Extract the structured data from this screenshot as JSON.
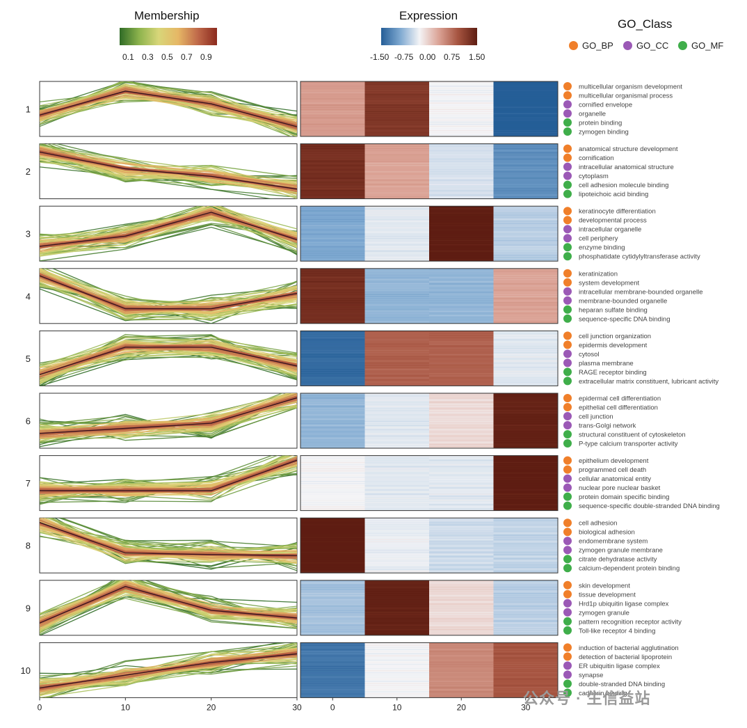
{
  "legends": {
    "membership": {
      "title": "Membership",
      "ticks": [
        "0.1",
        "0.3",
        "0.5",
        "0.7",
        "0.9"
      ],
      "colors": [
        "#2f6b26",
        "#8db34d",
        "#d8d679",
        "#e6b766",
        "#c06a4a",
        "#8b2a1e"
      ]
    },
    "expression": {
      "title": "Expression",
      "ticks": [
        "-1.50",
        "-0.75",
        "0.00",
        "0.75",
        "1.50"
      ],
      "colors": [
        "#255e97",
        "#7fa9d1",
        "#f4f4f6",
        "#dba396",
        "#a65440",
        "#5e1d12"
      ]
    },
    "go_class": {
      "title": "GO_Class",
      "items": [
        {
          "label": "GO_BP",
          "color": "#f07f2a"
        },
        {
          "label": "GO_CC",
          "color": "#9b59b6"
        },
        {
          "label": "GO_MF",
          "color": "#3fae4a"
        }
      ]
    }
  },
  "chart_data": {
    "type": "line",
    "x": [
      0,
      10,
      20,
      30
    ],
    "x_ticks": [
      "0",
      "10",
      "20",
      "30"
    ],
    "heatmap_x_ticks": [
      "0",
      "10",
      "20",
      "30"
    ],
    "clusters": [
      {
        "id": "1",
        "centroid": [
          0.38,
          0.85,
          0.6,
          0.15
        ],
        "expression": [
          0.35,
          1.2,
          -0.3,
          -1.5
        ],
        "terms": [
          {
            "label": "multicellular organism development",
            "class": "GO_BP"
          },
          {
            "label": "multicellular organismal process",
            "class": "GO_BP"
          },
          {
            "label": "cornified envelope",
            "class": "GO_CC"
          },
          {
            "label": "organelle",
            "class": "GO_CC"
          },
          {
            "label": "protein binding",
            "class": "GO_MF"
          },
          {
            "label": "zymogen binding",
            "class": "GO_MF"
          }
        ]
      },
      {
        "id": "2",
        "centroid": [
          0.88,
          0.55,
          0.4,
          0.15
        ],
        "expression": [
          1.3,
          0.3,
          -0.45,
          -1.1
        ],
        "terms": [
          {
            "label": "anatomical structure development",
            "class": "GO_BP"
          },
          {
            "label": "cornification",
            "class": "GO_BP"
          },
          {
            "label": "intracellular anatomical structure",
            "class": "GO_CC"
          },
          {
            "label": "cytoplasm",
            "class": "GO_CC"
          },
          {
            "label": "cell adhesion molecule binding",
            "class": "GO_MF"
          },
          {
            "label": "lipoteichoic acid binding",
            "class": "GO_MF"
          }
        ]
      },
      {
        "id": "3",
        "centroid": [
          0.25,
          0.45,
          0.92,
          0.38
        ],
        "expression": [
          -0.9,
          -0.4,
          1.5,
          -0.6
        ],
        "terms": [
          {
            "label": "keratinocyte differentiation",
            "class": "GO_BP"
          },
          {
            "label": "developmental process",
            "class": "GO_BP"
          },
          {
            "label": "intracellular organelle",
            "class": "GO_CC"
          },
          {
            "label": "cell periphery",
            "class": "GO_CC"
          },
          {
            "label": "enzyme binding",
            "class": "GO_MF"
          },
          {
            "label": "phosphatidate cytidylyltransferase activity",
            "class": "GO_MF"
          }
        ]
      },
      {
        "id": "4",
        "centroid": [
          0.9,
          0.25,
          0.25,
          0.55
        ],
        "expression": [
          1.3,
          -0.8,
          -0.8,
          0.3
        ],
        "terms": [
          {
            "label": "keratinization",
            "class": "GO_BP"
          },
          {
            "label": "system development",
            "class": "GO_BP"
          },
          {
            "label": "intracellular membrane-bounded organelle",
            "class": "GO_CC"
          },
          {
            "label": "membrane-bounded organelle",
            "class": "GO_CC"
          },
          {
            "label": "heparan sulfate binding",
            "class": "GO_MF"
          },
          {
            "label": "sequence-specific DNA binding",
            "class": "GO_MF"
          }
        ]
      },
      {
        "id": "5",
        "centroid": [
          0.18,
          0.72,
          0.72,
          0.35
        ],
        "expression": [
          -1.4,
          0.8,
          0.8,
          -0.4
        ],
        "terms": [
          {
            "label": "cell junction organization",
            "class": "GO_BP"
          },
          {
            "label": "epidermis development",
            "class": "GO_BP"
          },
          {
            "label": "cytosol",
            "class": "GO_CC"
          },
          {
            "label": "plasma membrane",
            "class": "GO_CC"
          },
          {
            "label": "RAGE receptor binding",
            "class": "GO_MF"
          },
          {
            "label": "extracellular matrix constituent, lubricant activity",
            "class": "GO_MF"
          }
        ]
      },
      {
        "id": "6",
        "centroid": [
          0.25,
          0.35,
          0.45,
          0.95
        ],
        "expression": [
          -0.8,
          -0.4,
          -0.1,
          1.45
        ],
        "terms": [
          {
            "label": "epidermal cell differentiation",
            "class": "GO_BP"
          },
          {
            "label": "epithelial cell differentiation",
            "class": "GO_BP"
          },
          {
            "label": "cell junction",
            "class": "GO_CC"
          },
          {
            "label": "trans-Golgi network",
            "class": "GO_CC"
          },
          {
            "label": "structural constituent of cytoskeleton",
            "class": "GO_MF"
          },
          {
            "label": "P-type calcium transporter activity",
            "class": "GO_MF"
          }
        ]
      },
      {
        "id": "7",
        "centroid": [
          0.35,
          0.35,
          0.35,
          0.95
        ],
        "expression": [
          -0.3,
          -0.4,
          -0.4,
          1.5
        ],
        "terms": [
          {
            "label": "epithelium development",
            "class": "GO_BP"
          },
          {
            "label": "programmed cell death",
            "class": "GO_BP"
          },
          {
            "label": "cellular anatomical entity",
            "class": "GO_CC"
          },
          {
            "label": "nuclear pore nuclear basket",
            "class": "GO_CC"
          },
          {
            "label": "protein domain specific binding",
            "class": "GO_MF"
          },
          {
            "label": "sequence-specific double-stranded DNA binding",
            "class": "GO_MF"
          }
        ]
      },
      {
        "id": "8",
        "centroid": [
          0.95,
          0.35,
          0.32,
          0.3
        ],
        "expression": [
          1.5,
          -0.35,
          -0.5,
          -0.55
        ],
        "terms": [
          {
            "label": "cell adhesion",
            "class": "GO_BP"
          },
          {
            "label": "biological adhesion",
            "class": "GO_BP"
          },
          {
            "label": "endomembrane system",
            "class": "GO_CC"
          },
          {
            "label": "zymogen granule membrane",
            "class": "GO_CC"
          },
          {
            "label": "citrate dehydratase activity",
            "class": "GO_MF"
          },
          {
            "label": "calcium-dependent protein binding",
            "class": "GO_MF"
          }
        ]
      },
      {
        "id": "9",
        "centroid": [
          0.2,
          0.92,
          0.45,
          0.3
        ],
        "expression": [
          -0.7,
          1.45,
          -0.1,
          -0.6
        ],
        "terms": [
          {
            "label": "skin development",
            "class": "GO_BP"
          },
          {
            "label": "tissue development",
            "class": "GO_BP"
          },
          {
            "label": "Hrd1p ubiquitin ligase complex",
            "class": "GO_CC"
          },
          {
            "label": "zymogen granule",
            "class": "GO_CC"
          },
          {
            "label": "pattern recognition receptor activity",
            "class": "GO_MF"
          },
          {
            "label": "Toll-like receptor 4 binding",
            "class": "GO_MF"
          }
        ]
      },
      {
        "id": "10",
        "centroid": [
          0.15,
          0.4,
          0.65,
          0.82
        ],
        "expression": [
          -1.3,
          -0.3,
          0.5,
          0.9
        ],
        "terms": [
          {
            "label": "induction of bacterial agglutination",
            "class": "GO_BP"
          },
          {
            "label": "detection of bacterial lipoprotein",
            "class": "GO_BP"
          },
          {
            "label": "ER ubiquitin ligase complex",
            "class": "GO_CC"
          },
          {
            "label": "synapse",
            "class": "GO_CC"
          },
          {
            "label": "double-stranded DNA binding",
            "class": "GO_MF"
          },
          {
            "label": "cadherin binding",
            "class": "GO_MF"
          }
        ]
      }
    ]
  },
  "watermark": "公众号 · 生信益站"
}
